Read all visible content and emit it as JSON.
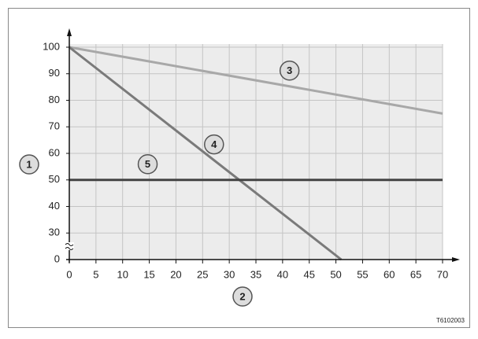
{
  "chart_data": {
    "type": "line",
    "xlim": [
      0,
      70
    ],
    "xticks": [
      0,
      5,
      10,
      15,
      20,
      25,
      30,
      35,
      40,
      45,
      50,
      55,
      60,
      65,
      70
    ],
    "ylim": [
      0,
      100
    ],
    "yticks": [
      0,
      30,
      40,
      50,
      60,
      70,
      80,
      90,
      100
    ],
    "grid": true,
    "y_axis_label": "1",
    "x_axis_label": "2",
    "series": [
      {
        "label": "3",
        "color": "#a8a8a8",
        "x": [
          0,
          70
        ],
        "values": [
          100,
          75
        ]
      },
      {
        "label": "4",
        "color": "#7a7a7a",
        "x": [
          0,
          51
        ],
        "values": [
          100,
          0
        ]
      },
      {
        "label": "5",
        "color": "#444444",
        "x": [
          0,
          70
        ],
        "values": [
          50,
          50
        ]
      }
    ],
    "code": "T6102003"
  }
}
